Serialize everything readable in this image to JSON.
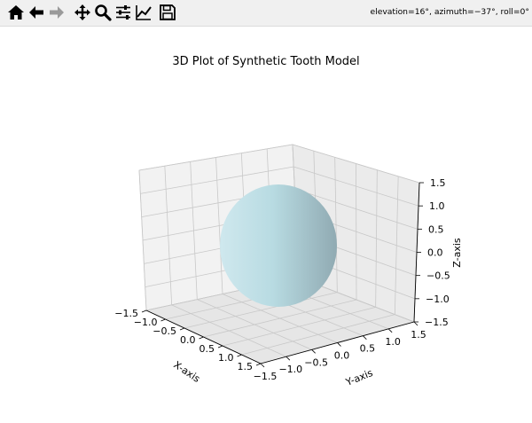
{
  "toolbar": {
    "buttons": [
      {
        "name": "home-icon",
        "tooltip": "Reset original view"
      },
      {
        "name": "back-arrow-icon",
        "tooltip": "Back to previous view"
      },
      {
        "name": "forward-arrow-icon",
        "tooltip": "Forward to next view"
      },
      {
        "name": "pan-icon",
        "tooltip": "Pan axes"
      },
      {
        "name": "zoom-icon",
        "tooltip": "Zoom to rectangle"
      },
      {
        "name": "configure-subplots-icon",
        "tooltip": "Configure subplots"
      },
      {
        "name": "edit-axis-icon",
        "tooltip": "Edit axis"
      },
      {
        "name": "save-icon",
        "tooltip": "Save the figure"
      }
    ],
    "status": "elevation=16°, azimuth=−37°, roll=0°"
  },
  "chart_data": {
    "type": "surface",
    "title": "3D Plot of Synthetic Tooth Model",
    "xlabel": "X-axis",
    "ylabel": "Y-axis",
    "zlabel": "Z-axis",
    "xlim": [
      -1.5,
      1.5
    ],
    "ylim": [
      -1.5,
      1.5
    ],
    "zlim": [
      -1.5,
      1.5
    ],
    "xticks": [
      "−1.5",
      "−1.0",
      "−0.5",
      "0.0",
      "0.5",
      "1.0",
      "1.5"
    ],
    "yticks": [
      "−1.5",
      "−1.0",
      "−0.5",
      "0.0",
      "0.5",
      "1.0",
      "1.5"
    ],
    "zticks": [
      "−1.5",
      "−1.0",
      "−0.5",
      "0.0",
      "0.5",
      "1.0",
      "1.5"
    ],
    "surface": {
      "shape": "sphere",
      "center": [
        0,
        0,
        0
      ],
      "radius": 1.0,
      "color": "#add8e6"
    },
    "grid": true,
    "view": {
      "elevation": 16,
      "azimuth": -37,
      "roll": 0
    }
  }
}
